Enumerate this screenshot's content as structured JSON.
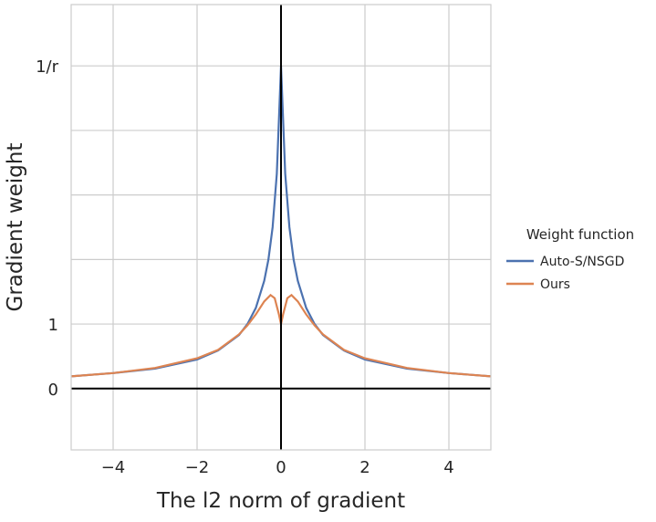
{
  "chart_data": {
    "type": "line",
    "xlabel": "The l2 norm of gradient",
    "ylabel": "Gradient weight",
    "xlim": [
      -5,
      5
    ],
    "ylim": [
      -0.95,
      5.95
    ],
    "xticks": [
      {
        "v": -4,
        "label": "−4"
      },
      {
        "v": -2,
        "label": "−2"
      },
      {
        "v": 0,
        "label": "0"
      },
      {
        "v": 2,
        "label": "2"
      },
      {
        "v": 4,
        "label": "4"
      }
    ],
    "ygrid": [
      0,
      1,
      2,
      3,
      4,
      5
    ],
    "yticks": [
      {
        "v": 0,
        "label": "0"
      },
      {
        "v": 1,
        "label": "1"
      },
      {
        "v": 5,
        "label": "1/r"
      }
    ],
    "grid": true,
    "legend": {
      "title": "Weight function",
      "placement": "right outside"
    },
    "series": [
      {
        "name": "Auto-S/NSGD",
        "color": "#4c72b0",
        "x": [
          -5,
          -4,
          -3,
          -2,
          -1.5,
          -1,
          -0.8,
          -0.6,
          -0.4,
          -0.3,
          -0.2,
          -0.1,
          0,
          0.1,
          0.2,
          0.3,
          0.4,
          0.6,
          0.8,
          1,
          1.5,
          2,
          3,
          4,
          5
        ],
        "y": [
          0.19,
          0.24,
          0.31,
          0.45,
          0.59,
          0.83,
          1.0,
          1.25,
          1.67,
          2.0,
          2.5,
          3.33,
          5,
          3.33,
          2.5,
          2.0,
          1.67,
          1.25,
          1.0,
          0.83,
          0.59,
          0.45,
          0.31,
          0.24,
          0.19
        ]
      },
      {
        "name": "Ours",
        "color": "#dd8452",
        "x": [
          -5,
          -4,
          -3,
          -2,
          -1.5,
          -1,
          -0.8,
          -0.6,
          -0.4,
          -0.25,
          -0.15,
          -0.05,
          0,
          0.05,
          0.15,
          0.25,
          0.4,
          0.6,
          0.8,
          1,
          1.5,
          2,
          3,
          4,
          5
        ],
        "y": [
          0.19,
          0.24,
          0.32,
          0.47,
          0.6,
          0.84,
          0.98,
          1.15,
          1.35,
          1.45,
          1.4,
          1.15,
          1.0,
          1.15,
          1.4,
          1.45,
          1.35,
          1.15,
          0.98,
          0.84,
          0.6,
          0.47,
          0.32,
          0.24,
          0.19
        ]
      }
    ]
  }
}
